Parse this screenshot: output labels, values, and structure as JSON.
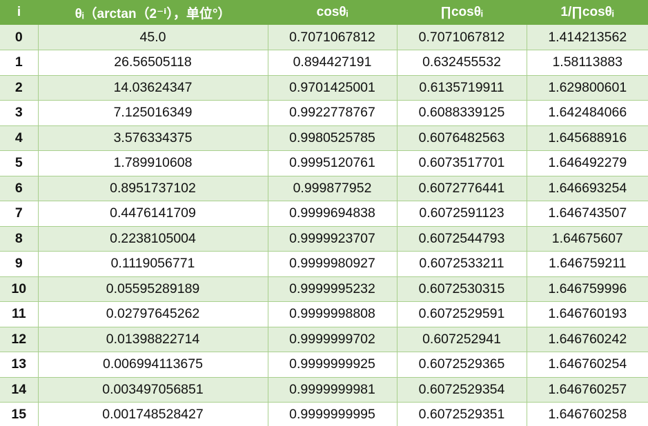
{
  "table": {
    "headers": [
      "i",
      "θᵢ（arctan（2⁻ⁱ），单位°）",
      "cosθᵢ",
      "∏cosθᵢ",
      "1/∏cosθᵢ"
    ],
    "rows": [
      [
        "0",
        "45.0",
        "0.7071067812",
        "0.7071067812",
        "1.414213562"
      ],
      [
        "1",
        "26.56505118",
        "0.894427191",
        "0.632455532",
        "1.58113883"
      ],
      [
        "2",
        "14.03624347",
        "0.9701425001",
        "0.6135719911",
        "1.629800601"
      ],
      [
        "3",
        "7.125016349",
        "0.9922778767",
        "0.6088339125",
        "1.642484066"
      ],
      [
        "4",
        "3.576334375",
        "0.9980525785",
        "0.6076482563",
        "1.645688916"
      ],
      [
        "5",
        "1.789910608",
        "0.9995120761",
        "0.6073517701",
        "1.646492279"
      ],
      [
        "6",
        "0.8951737102",
        "0.999877952",
        "0.6072776441",
        "1.646693254"
      ],
      [
        "7",
        "0.4476141709",
        "0.9999694838",
        "0.6072591123",
        "1.646743507"
      ],
      [
        "8",
        "0.2238105004",
        "0.9999923707",
        "0.6072544793",
        "1.64675607"
      ],
      [
        "9",
        "0.1119056771",
        "0.9999980927",
        "0.6072533211",
        "1.646759211"
      ],
      [
        "10",
        "0.05595289189",
        "0.9999995232",
        "0.6072530315",
        "1.646759996"
      ],
      [
        "11",
        "0.02797645262",
        "0.9999998808",
        "0.6072529591",
        "1.646760193"
      ],
      [
        "12",
        "0.01398822714",
        "0.9999999702",
        "0.607252941",
        "1.646760242"
      ],
      [
        "13",
        "0.006994113675",
        "0.9999999925",
        "0.6072529365",
        "1.646760254"
      ],
      [
        "14",
        "0.003497056851",
        "0.9999999981",
        "0.6072529354",
        "1.646760257"
      ],
      [
        "15",
        "0.001748528427",
        "0.9999999995",
        "0.6072529351",
        "1.646760258"
      ]
    ]
  },
  "colors": {
    "header_bg": "#70ad47",
    "header_text": "#ffffff",
    "band_odd": "#e2efda",
    "band_even": "#ffffff",
    "grid": "#a9d08e"
  }
}
